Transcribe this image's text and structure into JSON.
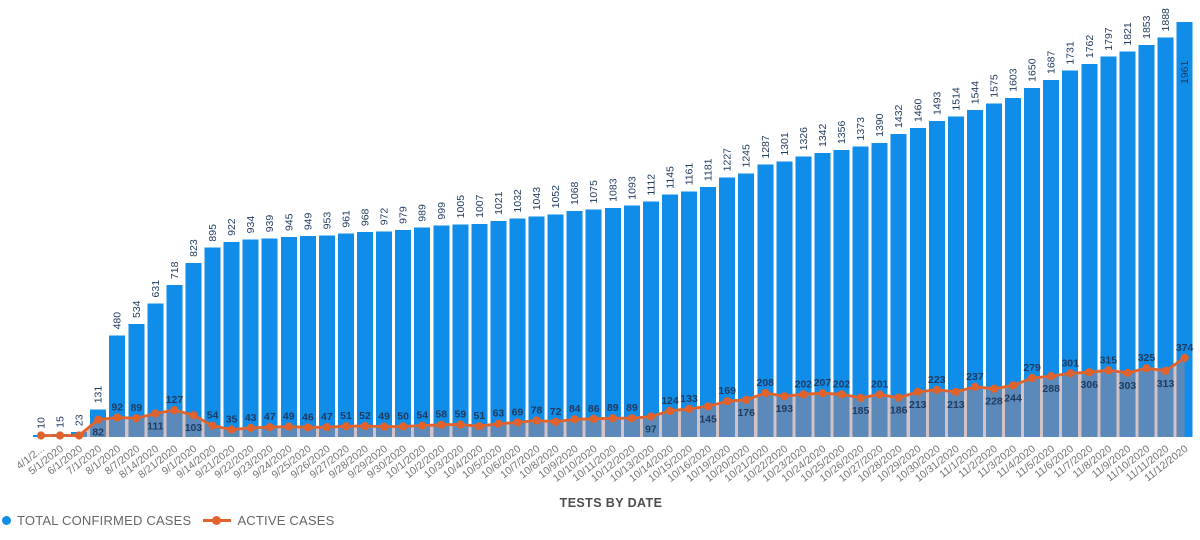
{
  "chart_data": {
    "type": "bar",
    "combo": "bar+line",
    "title": "",
    "xlabel": "TESTS BY DATE",
    "ylabel": "",
    "ylim": [
      0,
      1961
    ],
    "grid": false,
    "legend_position": "bottom-left",
    "x_dates": [
      "4/1/2...",
      "5/1/2020",
      "6/1/2020",
      "7/1/2020",
      "8/1/2020",
      "8/7/2020",
      "8/14/2020",
      "8/21/2020",
      "9/1/2020",
      "9/14/2020",
      "9/21/2020",
      "9/22/2020",
      "9/23/2020",
      "9/24/2020",
      "9/25/2020",
      "9/26/2020",
      "9/27/2020",
      "9/28/2020",
      "9/29/2020",
      "9/30/2020",
      "10/1/2020",
      "10/2/2020",
      "10/3/2020",
      "10/4/2020",
      "10/5/2020",
      "10/6/2020",
      "10/7/2020",
      "10/8/2020",
      "10/9/2020",
      "10/10/2020",
      "10/11/2020",
      "10/12/2020",
      "10/13/2020",
      "10/14/2020",
      "10/15/2020",
      "10/16/2020",
      "10/19/2020",
      "10/20/2020",
      "10/21/2020",
      "10/22/2020",
      "10/23/2020",
      "10/24/2020",
      "10/25/2020",
      "10/26/2020",
      "10/27/2020",
      "10/28/2020",
      "10/29/2020",
      "10/30/2020",
      "10/31/2020",
      "11/1/2020",
      "11/2/2020",
      "11/3/2020",
      "11/4/2020",
      "11/5/2020",
      "11/6/2020",
      "11/7/2020",
      "11/8/2020",
      "11/9/2020",
      "11/10/2020",
      "11/11/2020",
      "11/12/2020"
    ],
    "series": [
      {
        "name": "TOTAL CONFIRMED CASES",
        "type": "bar",
        "color": "#0f8de8",
        "values": [
          10,
          15,
          23,
          131,
          480,
          534,
          631,
          718,
          823,
          895,
          922,
          934,
          939,
          945,
          949,
          953,
          961,
          968,
          972,
          979,
          989,
          999,
          1005,
          1007,
          1021,
          1032,
          1043,
          1052,
          1068,
          1075,
          1083,
          1093,
          1112,
          1145,
          1161,
          1181,
          1227,
          1245,
          1287,
          1301,
          1326,
          1342,
          1356,
          1373,
          1390,
          1432,
          1460,
          1493,
          1514,
          1544,
          1575,
          1603,
          1650,
          1687,
          1731,
          1762,
          1797,
          1821,
          1853,
          1888,
          1961
        ]
      },
      {
        "name": "ACTIVE CASES",
        "type": "line",
        "color": "#e0622d",
        "values": [
          null,
          null,
          null,
          82,
          92,
          89,
          111,
          127,
          103,
          54,
          35,
          43,
          47,
          49,
          46,
          47,
          51,
          52,
          49,
          50,
          54,
          58,
          59,
          51,
          63,
          69,
          78,
          72,
          84,
          86,
          89,
          89,
          97,
          124,
          133,
          145,
          169,
          176,
          208,
          193,
          202,
          207,
          202,
          185,
          201,
          186,
          213,
          223,
          213,
          237,
          228,
          244,
          279,
          288,
          301,
          306,
          315,
          303,
          325,
          313,
          374
        ],
        "label_sides": [
          null,
          null,
          null,
          "below",
          "above",
          "above",
          "below",
          "above",
          "below",
          "above",
          "above",
          "above",
          "above",
          "above",
          "above",
          "above",
          "above",
          "above",
          "above",
          "above",
          "above",
          "above",
          "above",
          "above",
          "above",
          "above",
          "above",
          "above",
          "above",
          "above",
          "above",
          "above",
          "below",
          "above",
          "above",
          "below",
          "above",
          "below",
          "above",
          "below",
          "above",
          "above",
          "above",
          "below",
          "above",
          "below",
          "below",
          "above",
          "below",
          "above",
          "below",
          "below",
          "above",
          "below",
          "above",
          "below",
          "above",
          "below",
          "above",
          "below",
          "above"
        ]
      }
    ],
    "colors": {
      "bar_fill": "#0f8de8",
      "line_stroke": "#e0622d",
      "area_overlay": "rgba(168,136,140,0.5)",
      "value_labels": "#1f3a5f",
      "date_labels": "#737373",
      "axis_title": "#4d4d4d",
      "legend_text": "#666666",
      "background": "#ffffff"
    }
  }
}
